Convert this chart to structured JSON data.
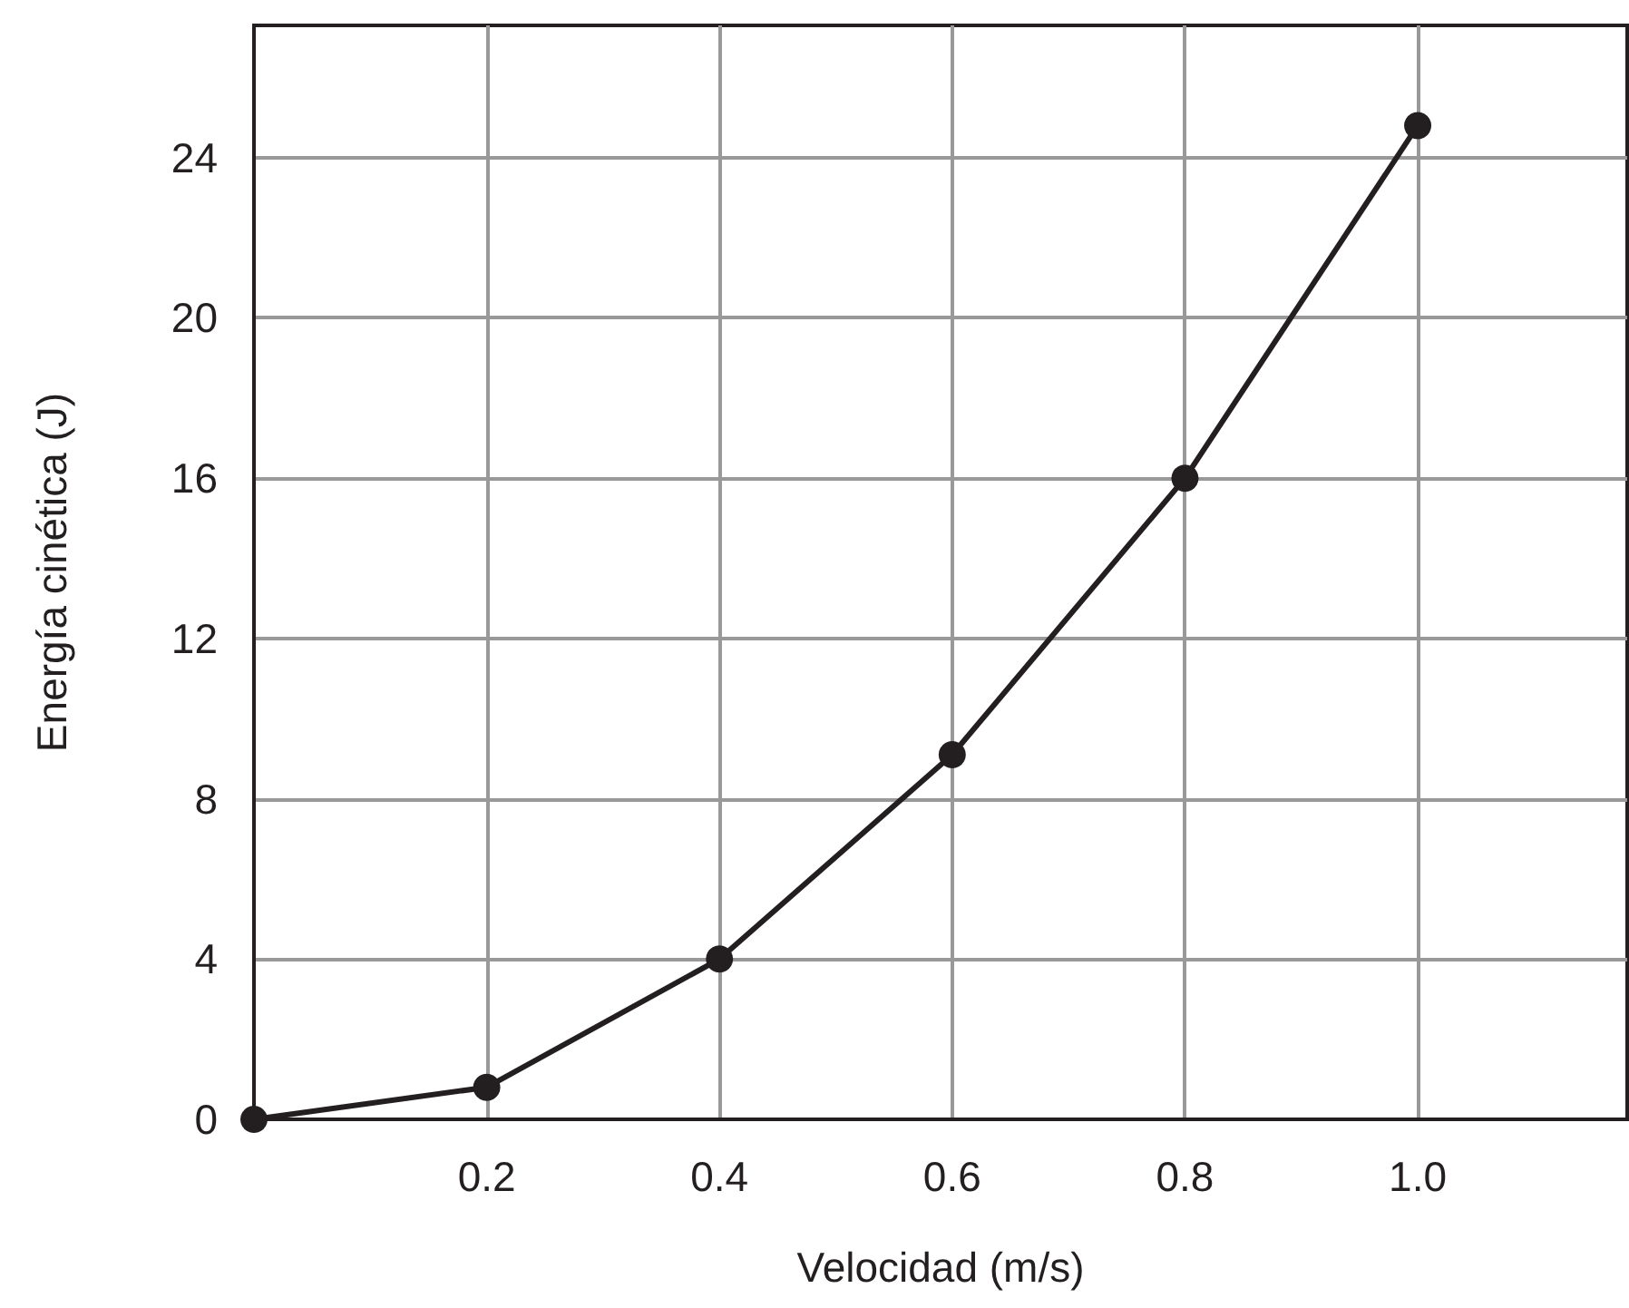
{
  "chart_data": {
    "type": "line",
    "xlabel": "Velocidad (m/s)",
    "ylabel": "Energía cinética (J)",
    "x": [
      0,
      0.2,
      0.4,
      0.6,
      0.8,
      1.0
    ],
    "series": [
      {
        "color": "#231f20",
        "values": [
          0,
          0.8,
          4,
          9.1,
          16,
          24.8
        ]
      }
    ],
    "xlim": [
      0,
      1.18
    ],
    "xticks": [
      0.2,
      0.4,
      0.6,
      0.8,
      {
        "value": 1,
        "label": "1.0"
      }
    ],
    "ylim": [
      0,
      27.3
    ],
    "yticks": [
      0,
      4,
      8,
      12,
      16,
      20,
      24
    ],
    "grid": true,
    "marker": "circle",
    "line_style": "solid"
  }
}
